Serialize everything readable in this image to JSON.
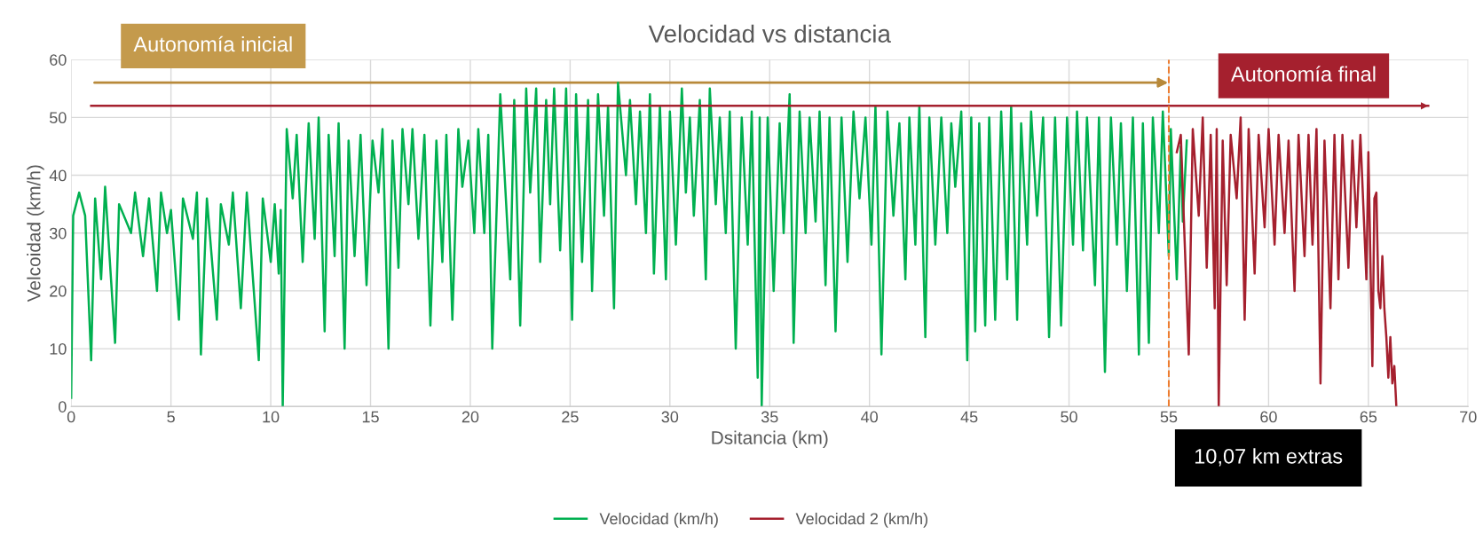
{
  "chart_data": {
    "type": "line",
    "title": "Velocidad vs distancia",
    "xlabel": "Dsitancia (km)",
    "ylabel": "Velcoidad (km/h)",
    "xlim": [
      0,
      70
    ],
    "xticks": [
      0,
      5,
      10,
      15,
      20,
      25,
      30,
      35,
      40,
      45,
      50,
      55,
      60,
      65,
      70
    ],
    "ylim": [
      0,
      60
    ],
    "yticks": [
      0,
      10,
      20,
      30,
      40,
      50,
      60
    ],
    "grid": true,
    "legend": "bottom",
    "marker": "none",
    "line_style": "solid",
    "series": [
      {
        "name": "Velocidad (km/h)",
        "color": "#00b050",
        "x": [
          0,
          0.1,
          0.4,
          0.7,
          1.0,
          1.2,
          1.5,
          1.7,
          2.2,
          2.4,
          3.0,
          3.2,
          3.6,
          3.9,
          4.3,
          4.5,
          4.8,
          5.0,
          5.4,
          5.6,
          6.1,
          6.3,
          6.5,
          6.8,
          7.3,
          7.5,
          7.9,
          8.1,
          8.5,
          8.8,
          9.4,
          9.6,
          10.0,
          10.2,
          10.4,
          10.5,
          10.6,
          10.8,
          11.1,
          11.3,
          11.6,
          11.9,
          12.2,
          12.4,
          12.7,
          12.9,
          13.2,
          13.4,
          13.7,
          13.9,
          14.2,
          14.5,
          14.8,
          15.1,
          15.4,
          15.6,
          15.9,
          16.1,
          16.4,
          16.6,
          16.9,
          17.1,
          17.4,
          17.7,
          18.0,
          18.3,
          18.6,
          18.8,
          19.1,
          19.4,
          19.6,
          19.9,
          20.2,
          20.4,
          20.7,
          20.9,
          21.1,
          21.5,
          22.0,
          22.2,
          22.5,
          22.8,
          23.0,
          23.3,
          23.5,
          23.8,
          24.0,
          24.2,
          24.5,
          24.8,
          25.1,
          25.3,
          25.6,
          25.9,
          26.1,
          26.4,
          26.7,
          26.9,
          27.2,
          27.4,
          27.8,
          28.0,
          28.3,
          28.5,
          28.8,
          29.0,
          29.2,
          29.5,
          29.8,
          30.0,
          30.3,
          30.6,
          30.8,
          31.0,
          31.2,
          31.5,
          31.8,
          32.0,
          32.3,
          32.5,
          32.8,
          33.0,
          33.3,
          33.6,
          33.9,
          34.1,
          34.4,
          34.5,
          34.6,
          34.9,
          35.2,
          35.5,
          35.7,
          36.0,
          36.2,
          36.5,
          36.8,
          37.0,
          37.3,
          37.5,
          37.8,
          38.0,
          38.3,
          38.6,
          38.9,
          39.2,
          39.5,
          39.8,
          40.1,
          40.3,
          40.6,
          40.9,
          41.2,
          41.5,
          41.8,
          42.0,
          42.3,
          42.5,
          42.8,
          43.0,
          43.3,
          43.6,
          43.9,
          44.1,
          44.3,
          44.6,
          44.9,
          45.1,
          45.3,
          45.5,
          45.8,
          46.0,
          46.3,
          46.6,
          46.9,
          47.1,
          47.4,
          47.6,
          47.9,
          48.1,
          48.4,
          48.7,
          49.0,
          49.3,
          49.6,
          49.9,
          50.2,
          50.4,
          50.7,
          50.9,
          51.3,
          51.5,
          51.8,
          52.1,
          52.4,
          52.6,
          52.9,
          53.2,
          53.5,
          53.7,
          54.0,
          54.2,
          54.5,
          54.7,
          55.0,
          55.1,
          55.4,
          55.6,
          55.7,
          55.9
        ],
        "values": [
          1.5,
          33,
          37,
          33,
          8,
          36,
          22,
          38,
          11,
          35,
          30,
          37,
          26,
          36,
          20,
          37,
          30,
          34,
          15,
          36,
          29,
          37,
          9,
          36,
          15,
          35,
          28,
          37,
          17,
          37,
          8,
          36,
          25,
          35,
          23,
          34,
          0,
          48,
          36,
          47,
          25,
          49,
          29,
          50,
          13,
          47,
          26,
          49,
          10,
          46,
          26,
          47,
          21,
          46,
          37,
          48,
          10,
          46,
          24,
          48,
          35,
          48,
          29,
          47,
          14,
          46,
          25,
          47,
          15,
          48,
          38,
          46,
          30,
          48,
          30,
          47,
          10,
          54,
          22,
          53,
          14,
          55,
          37,
          55,
          25,
          53,
          35,
          55,
          27,
          55,
          15,
          54,
          25,
          53,
          20,
          54,
          33,
          52,
          17,
          56,
          40,
          53,
          35,
          51,
          30,
          54,
          23,
          52,
          22,
          51,
          28,
          55,
          37,
          50,
          33,
          53,
          22,
          55,
          35,
          50,
          30,
          51,
          10,
          50,
          28,
          51,
          5,
          50,
          0,
          50,
          20,
          49,
          30,
          54,
          11,
          51,
          30,
          50,
          32,
          51,
          21,
          50,
          13,
          50,
          25,
          51,
          36,
          50,
          28,
          52,
          9,
          51,
          33,
          49,
          22,
          50,
          28,
          52,
          12,
          50,
          28,
          50,
          30,
          49,
          38,
          51,
          8,
          50,
          13,
          49,
          14,
          50,
          15,
          51,
          22,
          52,
          15,
          49,
          28,
          51,
          33,
          50,
          12,
          50,
          14,
          50,
          28,
          51,
          27,
          50,
          21,
          50,
          6,
          50,
          28,
          49,
          20,
          50,
          9,
          49,
          11,
          50,
          30,
          51,
          26,
          48,
          22,
          45,
          32,
          46
        ]
      },
      {
        "name": "Velocidad 2 (km/h)",
        "color": "#a5202e",
        "x": [
          55.4,
          55.6,
          56.0,
          56.2,
          56.5,
          56.7,
          56.9,
          57.1,
          57.3,
          57.4,
          57.5,
          57.7,
          57.9,
          58.1,
          58.4,
          58.6,
          58.8,
          59.0,
          59.3,
          59.5,
          59.8,
          60.0,
          60.3,
          60.5,
          60.8,
          61.0,
          61.3,
          61.5,
          61.8,
          62.0,
          62.2,
          62.4,
          62.6,
          62.8,
          63.1,
          63.3,
          63.5,
          63.7,
          64.0,
          64.2,
          64.4,
          64.6,
          64.9,
          65.0,
          65.2,
          65.3,
          65.4,
          65.5,
          65.6,
          65.7,
          65.8,
          65.9,
          66.0,
          66.1,
          66.2,
          66.3,
          66.4
        ],
        "values": [
          44,
          47,
          9,
          48,
          33,
          50,
          24,
          47,
          17,
          48,
          0,
          46,
          21,
          47,
          36,
          50,
          15,
          48,
          23,
          47,
          31,
          48,
          28,
          47,
          30,
          46,
          20,
          47,
          26,
          47,
          28,
          48,
          4,
          46,
          17,
          47,
          22,
          47,
          24,
          46,
          31,
          47,
          22,
          44,
          7,
          36,
          37,
          20,
          17,
          26,
          17,
          12,
          5,
          12,
          4,
          7,
          0
        ]
      },
      {
        "color": "#a5202e",
        "x": [
          1,
          68
        ],
        "values": [
          52,
          52
        ],
        "marker": "triangle"
      }
    ],
    "ref_lines": [
      {
        "axis": "x",
        "value": 55,
        "color": "#ed7d31",
        "line_style": "dashed"
      }
    ],
    "annotations": [
      "Autonomía inicial",
      "Autonomía final",
      "10,07 km extras"
    ]
  }
}
